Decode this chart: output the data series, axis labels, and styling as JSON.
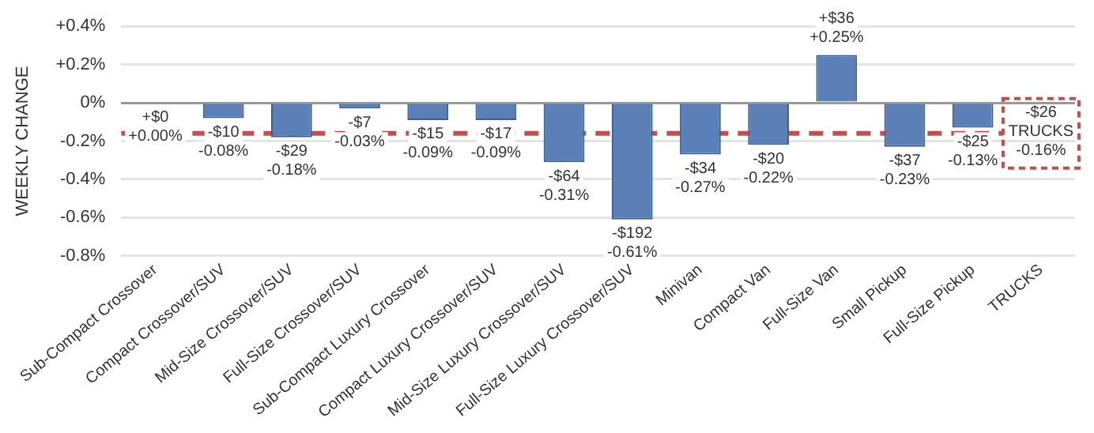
{
  "chart_data": {
    "type": "bar",
    "ylabel": "WEEKLY CHANGE",
    "categories": [
      "Sub-Compact Crossover",
      "Compact Crossover/SUV",
      "Mid-Size Crossover/SUV",
      "Full-Size Crossover/SUV",
      "Sub-Compact Luxury Crossover",
      "Compact Luxury Crossover/SUV",
      "Mid-Size Luxury Crossover/SUV",
      "Full-Size Luxury Crossover/SUV",
      "Minivan",
      "Compact Van",
      "Full-Size Van",
      "Small Pickup",
      "Full-Size Pickup",
      "TRUCKS"
    ],
    "values": [
      0,
      -0.08,
      -0.18,
      -0.03,
      -0.09,
      -0.09,
      -0.31,
      -0.61,
      -0.27,
      -0.22,
      0.25,
      -0.23,
      -0.13,
      null
    ],
    "value_labels": [
      "+$0\n+0.00%",
      "-$10\n-0.08%",
      "-$29\n-0.18%",
      "-$7\n-0.03%",
      "-$15\n-0.09%",
      "-$17\n-0.09%",
      "-$64\n-0.31%",
      "-$192\n-0.61%",
      "-$34\n-0.27%",
      "-$20\n-0.22%",
      "+$36\n+0.25%",
      "-$37\n-0.23%",
      "-$25\n-0.13%",
      null
    ],
    "color": "#5b80b8",
    "ylim": [
      -0.8,
      0.4
    ],
    "yticks": [
      {
        "value": 0.4,
        "label": "+0.4%"
      },
      {
        "value": 0.2,
        "label": "+0.2%"
      },
      {
        "value": 0,
        "label": "0%"
      },
      {
        "value": -0.2,
        "label": "-0.2%"
      },
      {
        "value": -0.4,
        "label": "-0.4%"
      },
      {
        "value": -0.6,
        "label": "-0.6%"
      },
      {
        "value": -0.8,
        "label": "-0.8%"
      }
    ],
    "grid": "y",
    "legend": false,
    "ref_lines": [
      {
        "axis": "y",
        "value": -0.16,
        "label": "-$26\nTRUCKS\n-0.16%",
        "color": "#c0504d",
        "line_style": "dashed"
      }
    ]
  }
}
